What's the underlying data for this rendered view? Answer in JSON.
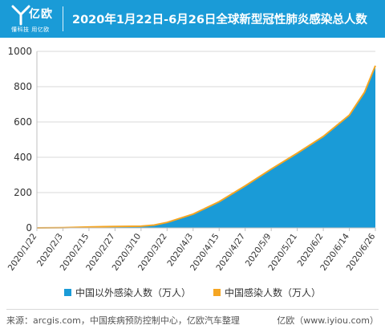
{
  "header": {
    "logo_text": "亿欧",
    "logo_slogan": "懂科技 用亿欧",
    "title": "2020年1月22日-6月26日全球新型冠性肺炎感染总人数"
  },
  "colors": {
    "header_bg": "#1a9bd7",
    "outside_china": "#1a9bd7",
    "china": "#f5a623"
  },
  "chart_data": {
    "type": "area",
    "title": "2020年1月22日-6月26日全球新型冠性肺炎感染总人数",
    "xlabel": "",
    "ylabel": "",
    "ylim": [
      0,
      1000
    ],
    "yticks": [
      0,
      200,
      400,
      600,
      800,
      1000
    ],
    "x_tick_labels": [
      "2020/1/22",
      "2020/2/3",
      "2020/2/15",
      "2020/2/27",
      "2020/3/10",
      "2020/3/22",
      "2020/4/3",
      "2020/4/15",
      "2020/4/27",
      "2020/5/9",
      "2020/5/21",
      "2020/6/2",
      "2020/6/14",
      "2020/6/26"
    ],
    "grid": true,
    "legend_position": "bottom",
    "stacked": true,
    "series": [
      {
        "name": "中国以外感染人数（万人）",
        "values": [
          0,
          0,
          0,
          0.5,
          1.5,
          8,
          23,
          70,
          140,
          230,
          325,
          415,
          510,
          630,
          760,
          910
        ]
      },
      {
        "name": "中国感染人数（万人）",
        "values": [
          0.1,
          1.2,
          5,
          7.5,
          8,
          8.1,
          8.1,
          8.2,
          8.3,
          8.3,
          8.3,
          8.4,
          8.4,
          8.5,
          8.5,
          8.5
        ]
      }
    ],
    "x": [
      "2020/1/22",
      "2020/2/3",
      "2020/2/15",
      "2020/2/27",
      "2020/3/10",
      "2020/3/16",
      "2020/3/22",
      "2020/4/3",
      "2020/4/15",
      "2020/4/27",
      "2020/5/9",
      "2020/5/21",
      "2020/6/2",
      "2020/6/14",
      "2020/6/21",
      "2020/6/26"
    ]
  },
  "legend": {
    "outside_china": "中国以外感染人数（万人）",
    "china": "中国感染人数（万人）"
  },
  "footer": {
    "source": "来源：arcgis.com，中国疾病预防控制中心，亿欧汽车整理",
    "brand": "亿欧（www.iyiou.com）"
  }
}
